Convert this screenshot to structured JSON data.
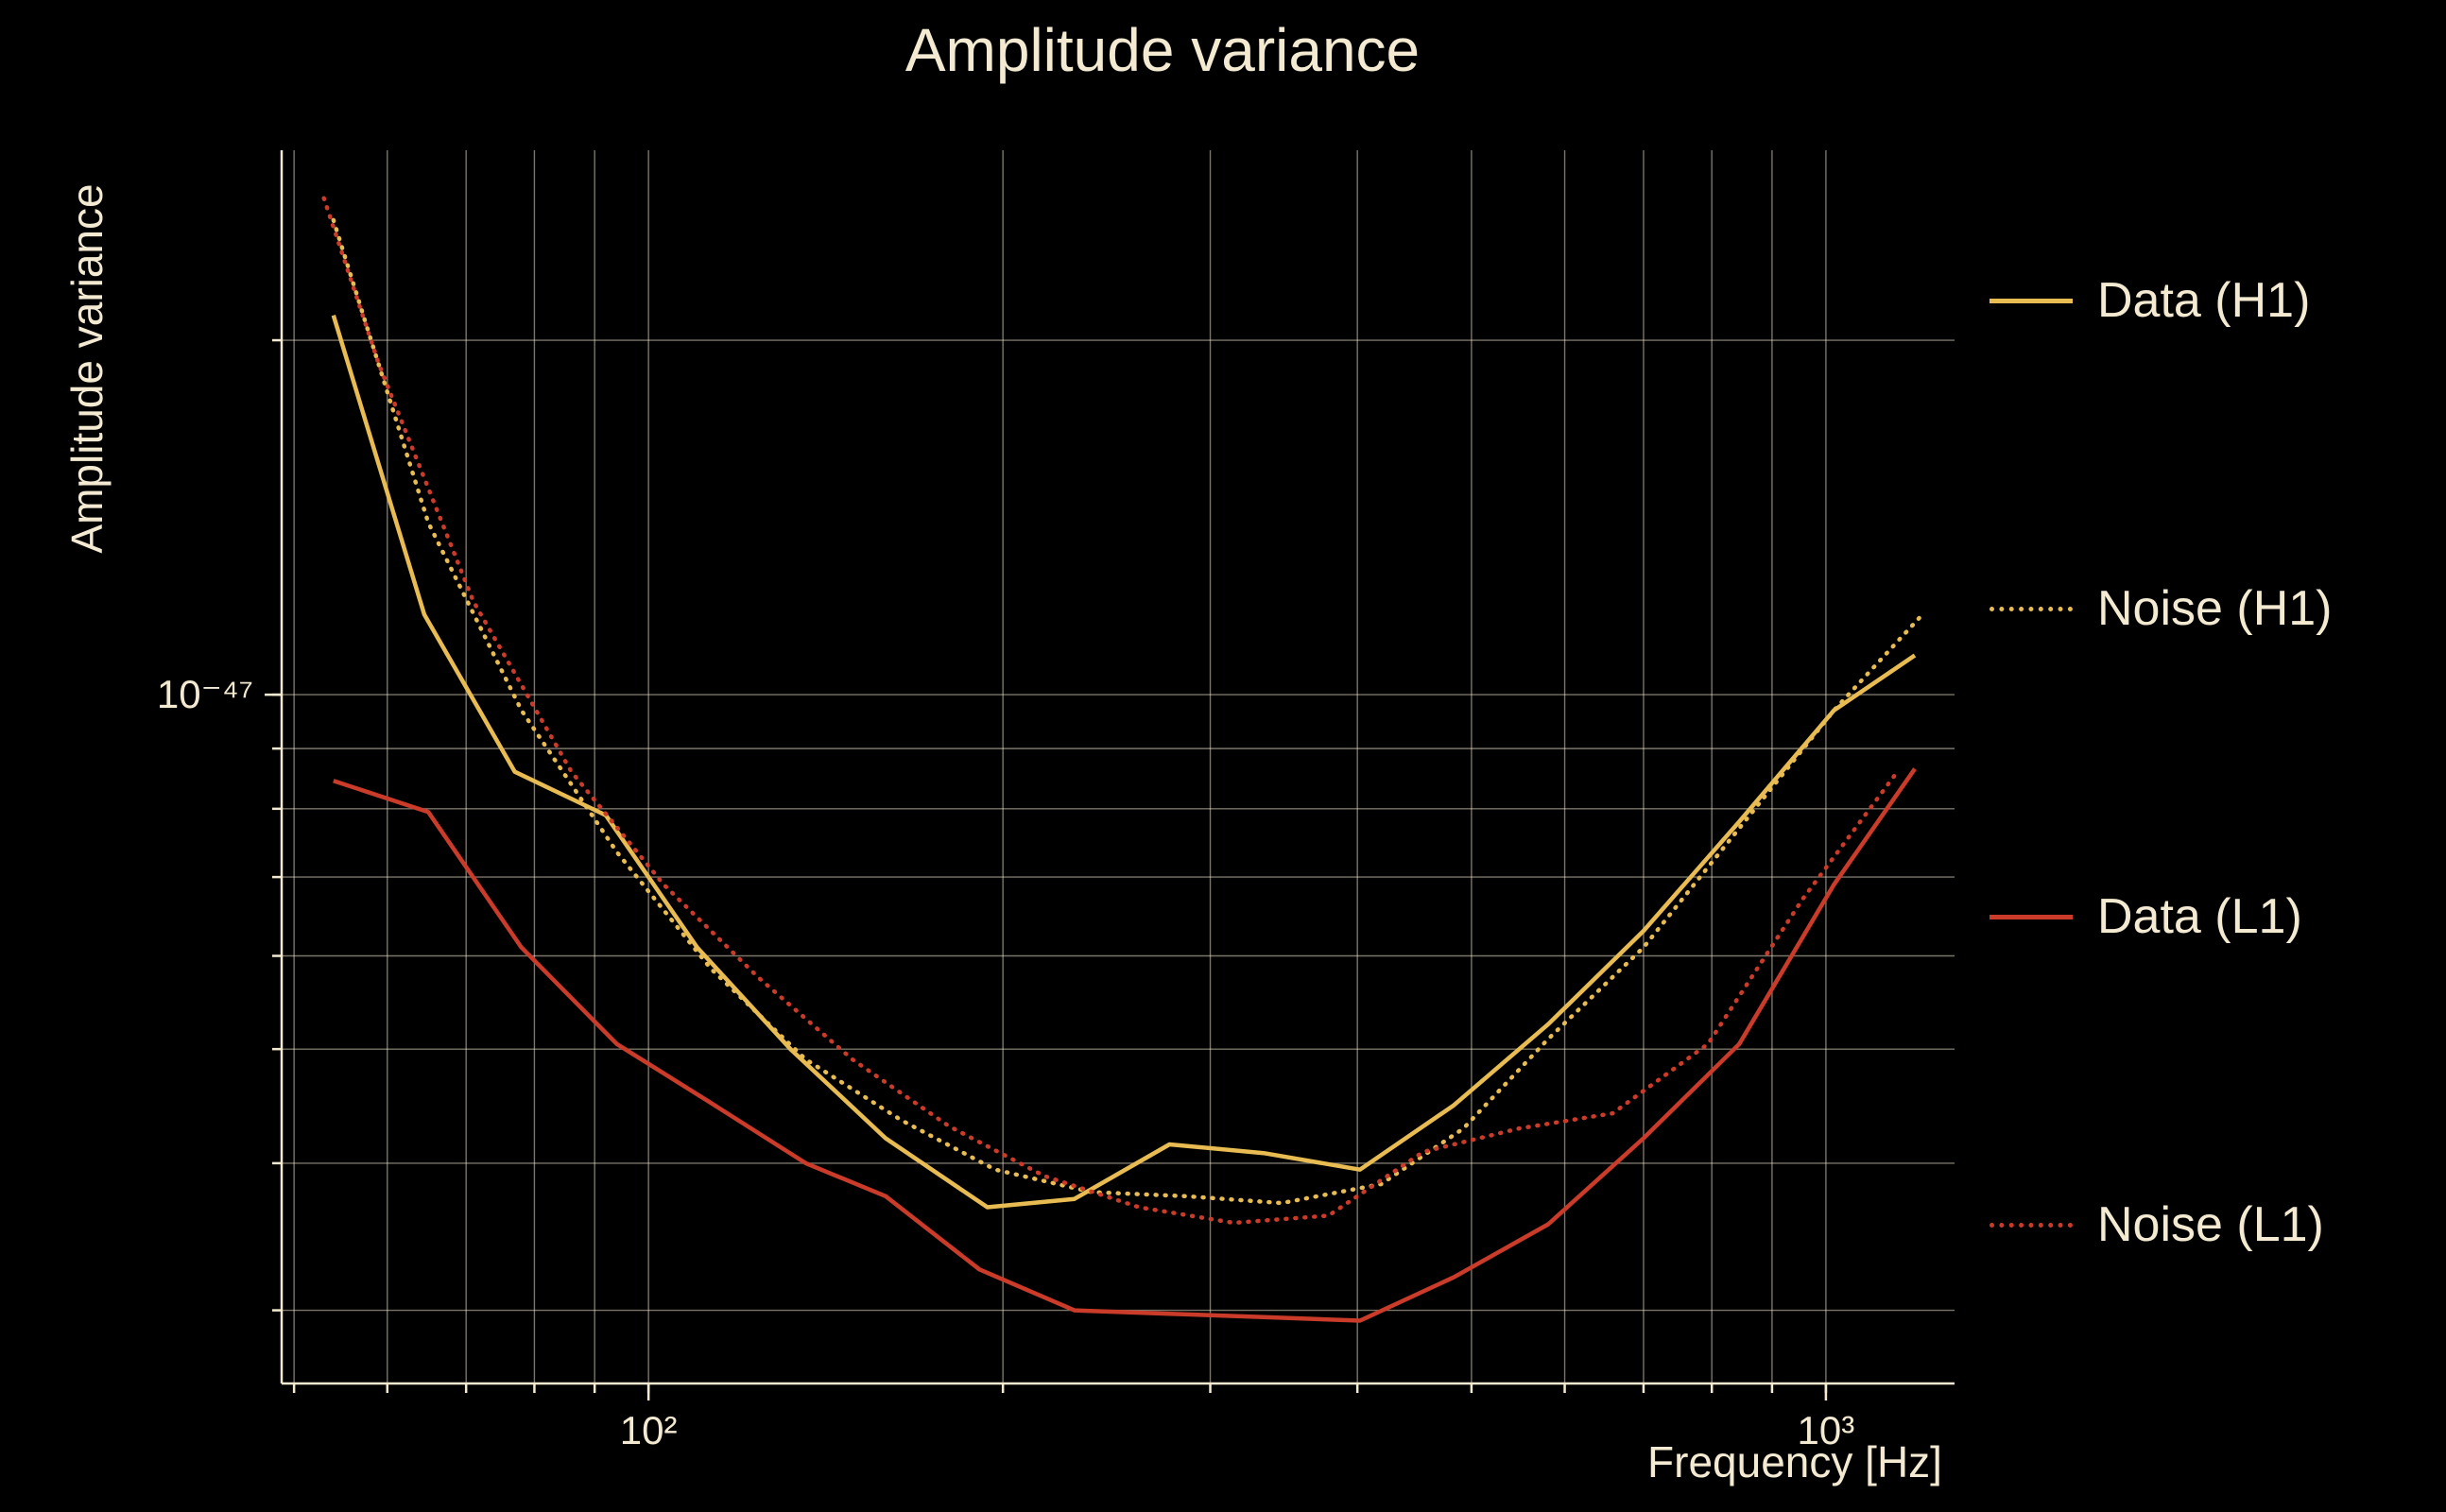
{
  "chart": {
    "title": "Amplitude variance",
    "xlabel": "Frequency [Hz]",
    "ylabel": "Amplitude variance"
  },
  "chart_data": {
    "type": "line",
    "title": "Amplitude variance",
    "xlabel": "Frequency [Hz]",
    "ylabel": "Amplitude variance",
    "x_scale": "log",
    "y_scale": "log",
    "grid": true,
    "legend_position": "right-outside",
    "background_color": "#000000",
    "text_color": "#f3ead1",
    "xlim": [
      48.8,
      1286
    ],
    "ylim": [
      2.6e-48,
      2.9e-47
    ],
    "x_ticks": [
      {
        "value": 100,
        "label": "10²"
      },
      {
        "value": 1000,
        "label": "10³"
      }
    ],
    "y_ticks": [
      {
        "value": 1e-47,
        "label": "10⁻⁴⁷"
      }
    ],
    "x_gridlines": [
      50,
      60,
      70,
      80,
      90,
      100,
      200,
      300,
      400,
      500,
      600,
      700,
      800,
      900,
      1000
    ],
    "y_gridlines": [
      3e-48,
      4e-48,
      5e-48,
      6e-48,
      7e-48,
      8e-48,
      9e-48,
      1e-47,
      2e-47
    ],
    "series": [
      {
        "name": "Data (H1)",
        "color": "#e8bc52",
        "style": "solid",
        "points": [
          [
            54,
            2.1e-47
          ],
          [
            64.5,
            1.17e-47
          ],
          [
            77,
            8.6e-48
          ],
          [
            92,
            7.9e-48
          ],
          [
            110,
            6.1e-48
          ],
          [
            132,
            5e-48
          ],
          [
            159,
            4.2e-48
          ],
          [
            194,
            3.67e-48
          ],
          [
            230,
            3.73e-48
          ],
          [
            277,
            4.15e-48
          ],
          [
            333,
            4.08e-48
          ],
          [
            402,
            3.95e-48
          ],
          [
            483,
            4.48e-48
          ],
          [
            581,
            5.25e-48
          ],
          [
            700,
            6.3e-48
          ],
          [
            844,
            7.8e-48
          ],
          [
            1016,
            9.7e-48
          ],
          [
            1190,
            1.08e-47
          ]
        ]
      },
      {
        "name": "Noise (H1)",
        "color": "#e8bc52",
        "style": "dotted",
        "points": [
          [
            54,
            2.53e-47
          ],
          [
            65,
            1.4e-47
          ],
          [
            78,
            9.7e-48
          ],
          [
            94,
            7.35e-48
          ],
          [
            113,
            5.85e-48
          ],
          [
            136,
            4.9e-48
          ],
          [
            164,
            4.35e-48
          ],
          [
            197,
            3.95e-48
          ],
          [
            238,
            3.78e-48
          ],
          [
            286,
            3.75e-48
          ],
          [
            345,
            3.7e-48
          ],
          [
            419,
            3.84e-48
          ],
          [
            492,
            4.28e-48
          ],
          [
            581,
            5.1e-48
          ],
          [
            700,
            6.1e-48
          ],
          [
            844,
            7.7e-48
          ],
          [
            1016,
            9.7e-48
          ],
          [
            1208,
            1.17e-47
          ]
        ]
      },
      {
        "name": "Data (L1)",
        "color": "#cb3b2a",
        "style": "solid",
        "points": [
          [
            54,
            8.45e-48
          ],
          [
            65,
            7.95e-48
          ],
          [
            78,
            6.1e-48
          ],
          [
            94,
            5.05e-48
          ],
          [
            113,
            4.5e-48
          ],
          [
            136,
            4e-48
          ],
          [
            159,
            3.75e-48
          ],
          [
            191,
            3.25e-48
          ],
          [
            230,
            3e-48
          ],
          [
            277,
            2.98e-48
          ],
          [
            333,
            2.96e-48
          ],
          [
            402,
            2.94e-48
          ],
          [
            483,
            3.2e-48
          ],
          [
            581,
            3.55e-48
          ],
          [
            700,
            4.2e-48
          ],
          [
            844,
            5.05e-48
          ],
          [
            1016,
            6.9e-48
          ],
          [
            1190,
            8.65e-48
          ]
        ]
      },
      {
        "name": "Noise (L1)",
        "color": "#cb3b2a",
        "style": "dotted",
        "points": [
          [
            53,
            2.64e-47
          ],
          [
            59,
            1.91e-47
          ],
          [
            71,
            1.2e-47
          ],
          [
            86,
            8.6e-48
          ],
          [
            103,
            6.9e-48
          ],
          [
            124,
            5.75e-48
          ],
          [
            149,
            4.9e-48
          ],
          [
            180,
            4.3e-48
          ],
          [
            217,
            3.9e-48
          ],
          [
            261,
            3.67e-48
          ],
          [
            314,
            3.56e-48
          ],
          [
            378,
            3.61e-48
          ],
          [
            455,
            4.09e-48
          ],
          [
            548,
            4.28e-48
          ],
          [
            659,
            4.41e-48
          ],
          [
            794,
            5.05e-48
          ],
          [
            955,
            6.7e-48
          ],
          [
            1150,
            8.6e-48
          ]
        ]
      }
    ]
  }
}
